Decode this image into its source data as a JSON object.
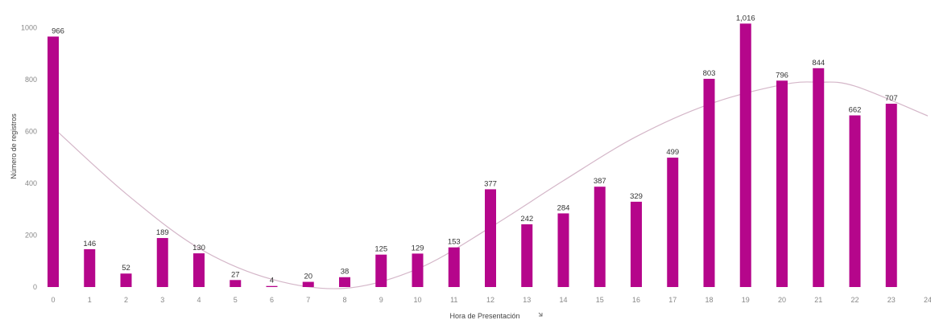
{
  "chart_data": {
    "type": "bar",
    "xlabel": "Hora de Presentación",
    "xlabel_icon": "sort-icon",
    "ylabel": "Número de registros",
    "ylim": [
      0,
      1040
    ],
    "yticks": [
      0,
      200,
      400,
      600,
      800,
      1000
    ],
    "xticks": [
      "0",
      "1",
      "2",
      "3",
      "4",
      "5",
      "6",
      "7",
      "8",
      "9",
      "10",
      "11",
      "12",
      "13",
      "14",
      "15",
      "16",
      "17",
      "18",
      "19",
      "20",
      "21",
      "22",
      "23",
      "24"
    ],
    "categories": [
      "0",
      "1",
      "2",
      "3",
      "4",
      "5",
      "6",
      "7",
      "8",
      "9",
      "10",
      "11",
      "12",
      "13",
      "14",
      "15",
      "16",
      "17",
      "18",
      "19",
      "20",
      "21",
      "22",
      "23"
    ],
    "values": [
      966,
      146,
      52,
      189,
      130,
      27,
      4,
      20,
      38,
      125,
      129,
      153,
      377,
      242,
      284,
      387,
      329,
      499,
      803,
      1016,
      796,
      844,
      662,
      707
    ],
    "data_labels": [
      "966",
      "146",
      "52",
      "189",
      "130",
      "27",
      "4",
      "20",
      "38",
      "125",
      "129",
      "153",
      "377",
      "242",
      "284",
      "387",
      "329",
      "499",
      "803",
      "1,016",
      "796",
      "844",
      "662",
      "707"
    ],
    "trend_line": {
      "x": [
        0,
        2,
        4,
        6,
        8,
        10,
        12,
        14,
        16,
        18,
        20,
        21,
        22,
        24
      ],
      "y": [
        615,
        360,
        150,
        30,
        -5,
        70,
        230,
        410,
        580,
        705,
        780,
        790,
        775,
        660
      ]
    },
    "colors": {
      "bar": "#b5068b",
      "trend": "#d4b6c8",
      "tick": "#888888",
      "label": "#333333"
    },
    "grid": false,
    "legend": "none"
  }
}
